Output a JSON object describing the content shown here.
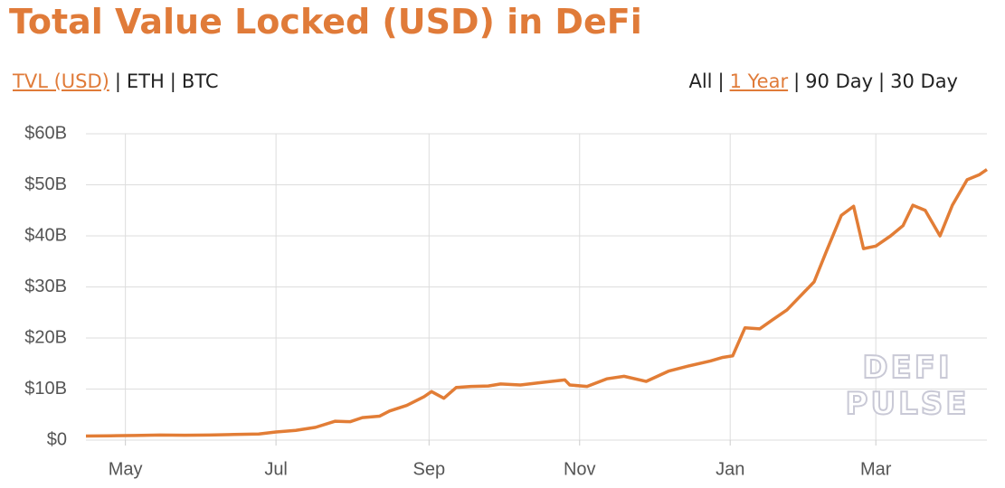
{
  "chart_data": {
    "type": "line",
    "title": "Total Value Locked (USD) in DeFi",
    "units_tabs": [
      "TVL (USD)",
      "ETH",
      "BTC"
    ],
    "active_units_tab": 0,
    "range_tabs": [
      "All",
      "1 Year",
      "90 Day",
      "30 Day"
    ],
    "active_range_tab": 1,
    "separator": "|",
    "watermark": [
      "DEFI",
      "PULSE"
    ],
    "x": [
      0,
      10,
      20,
      30,
      40,
      50,
      60,
      70,
      77,
      85,
      93,
      101,
      107,
      112,
      119,
      123,
      130,
      137,
      140,
      145,
      150,
      156,
      163,
      168,
      176,
      185,
      194,
      196,
      203,
      211,
      218,
      227,
      236,
      244,
      253,
      258,
      262,
      267,
      273,
      278,
      284,
      289,
      295,
      300,
      306,
      311,
      315,
      320,
      326,
      331,
      335,
      340,
      346,
      351,
      357,
      362,
      365
    ],
    "series": [
      {
        "name": "TVL (USD)",
        "color": "#e27d36",
        "values": [
          0.8,
          0.85,
          0.9,
          1.0,
          0.95,
          1.0,
          1.1,
          1.2,
          1.6,
          1.9,
          2.5,
          3.7,
          3.6,
          4.4,
          4.7,
          5.7,
          6.8,
          8.5,
          9.5,
          8.2,
          10.3,
          10.5,
          10.6,
          11.0,
          10.8,
          11.3,
          11.8,
          10.8,
          10.5,
          12.0,
          12.5,
          11.5,
          13.5,
          14.5,
          15.5,
          16.2,
          16.5,
          22.0,
          21.8,
          23.5,
          25.5,
          28.0,
          31.0,
          37.0,
          44.0,
          45.8,
          37.5,
          38.0,
          40.0,
          42.0,
          46.0,
          45.0,
          40.0,
          46.0,
          51.0,
          52.0,
          53.0
        ]
      }
    ],
    "xlim": [
      0,
      365
    ],
    "xticks": [
      {
        "value": 16,
        "label": "May"
      },
      {
        "value": 77,
        "label": "Jul"
      },
      {
        "value": 139,
        "label": "Sep"
      },
      {
        "value": 200,
        "label": "Nov"
      },
      {
        "value": 261,
        "label": "Jan"
      },
      {
        "value": 320,
        "label": "Mar"
      }
    ],
    "ylim": [
      0,
      60
    ],
    "yticks": [
      {
        "value": 0,
        "label": "$0"
      },
      {
        "value": 10,
        "label": "$10B"
      },
      {
        "value": 20,
        "label": "$20B"
      },
      {
        "value": 30,
        "label": "$30B"
      },
      {
        "value": 40,
        "label": "$40B"
      },
      {
        "value": 50,
        "label": "$50B"
      },
      {
        "value": 60,
        "label": "$60B"
      }
    ],
    "grid": true
  }
}
